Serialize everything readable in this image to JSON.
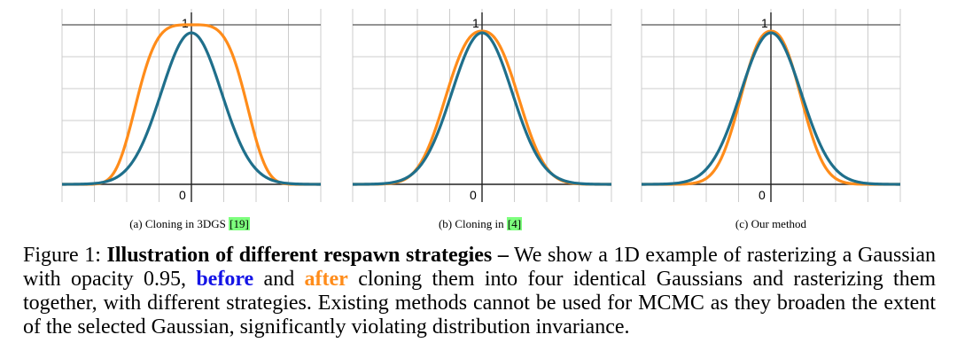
{
  "panels": [
    {
      "caption_prefix": "(a) Cloning in 3DGS ",
      "cite": "[19]",
      "tick_one": "1",
      "tick_zero": "0",
      "curves": [
        {
          "role": "before",
          "color": "#1f6f8b",
          "peak": 0.95,
          "sigma": 1.0,
          "power": 2
        },
        {
          "role": "after",
          "color": "#ff8c1a",
          "peak": 1.0,
          "sigma": 1.7,
          "power": 4
        }
      ]
    },
    {
      "caption_prefix": "(b) Cloning in ",
      "cite": "[4]",
      "tick_one": "1",
      "tick_zero": "0",
      "curves": [
        {
          "role": "before",
          "color": "#1f6f8b",
          "peak": 0.95,
          "sigma": 1.0,
          "power": 2
        },
        {
          "role": "after",
          "color": "#ff8c1a",
          "peak": 0.96,
          "sigma": 1.15,
          "power": 2.4
        }
      ]
    },
    {
      "caption_prefix": "(c) Our method",
      "cite": "",
      "tick_one": "1",
      "tick_zero": "0",
      "curves": [
        {
          "role": "before",
          "color": "#1f6f8b",
          "peak": 0.95,
          "sigma": 1.0,
          "power": 2
        },
        {
          "role": "after",
          "color": "#ff8c1a",
          "peak": 0.96,
          "sigma": 0.95,
          "power": 2.3
        }
      ]
    }
  ],
  "caption": {
    "label": "Figure 1:",
    "bold_title": "Illustration of different respawn strategies –",
    "text_1": "We show a 1D example of rasterizing a Gaussian with opacity 0.95,",
    "before_word": "before",
    "text_2": "and",
    "after_word": "after",
    "text_3": "cloning them into four identical Gaussians and rasterizing them together, with different strategies. Existing methods cannot be used for MCMC as they broaden the extent of the selected Gaussian, significantly violating distribution invariance."
  }
}
